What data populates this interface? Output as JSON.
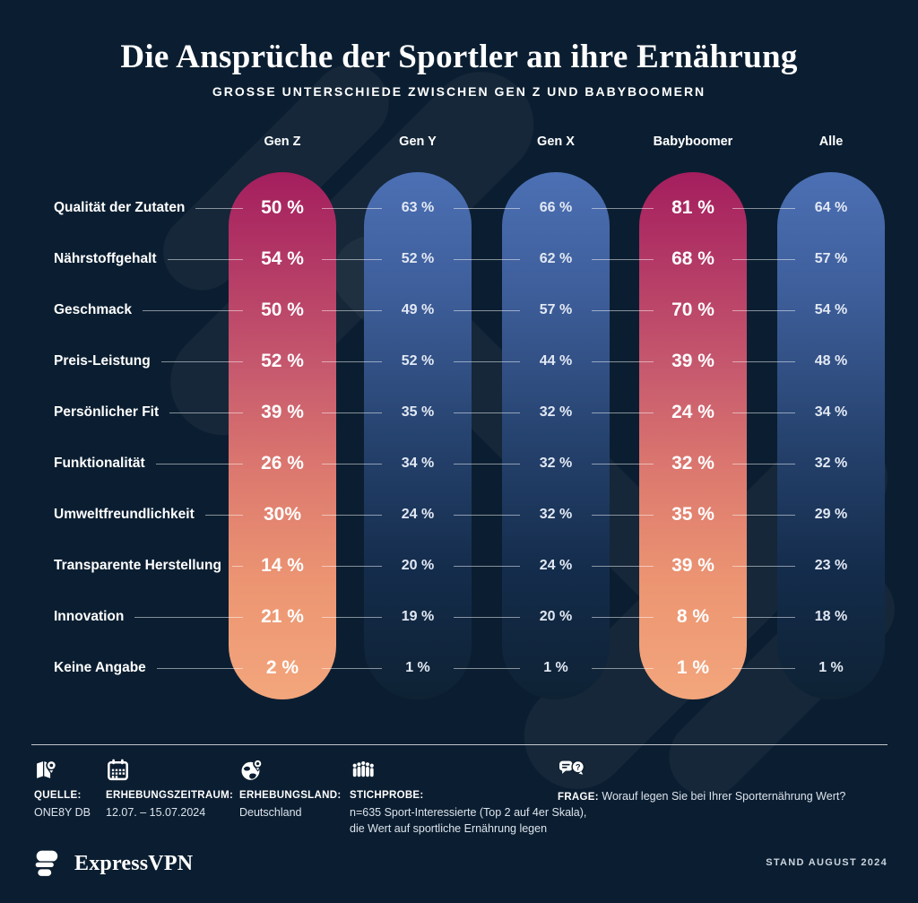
{
  "title": "Die Ansprüche der Sportler an ihre Ernährung",
  "subtitle": "GROSSE UNTERSCHIEDE ZWISCHEN GEN Z UND BABYBOOMERN",
  "columns": [
    {
      "label": "Gen Z",
      "type": "highlight"
    },
    {
      "label": "Gen Y",
      "type": "normal"
    },
    {
      "label": "Gen X",
      "type": "normal"
    },
    {
      "label": "Babyboomer",
      "type": "highlight"
    },
    {
      "label": "Alle",
      "type": "normal"
    }
  ],
  "rows": [
    {
      "label": "Qualität der Zutaten",
      "values": [
        "50 %",
        "63 %",
        "66 %",
        "81 %",
        "64 %"
      ]
    },
    {
      "label": "Nährstoffgehalt",
      "values": [
        "54 %",
        "52 %",
        "62 %",
        "68 %",
        "57 %"
      ]
    },
    {
      "label": "Geschmack",
      "values": [
        "50 %",
        "49 %",
        "57 %",
        "70 %",
        "54 %"
      ]
    },
    {
      "label": "Preis-Leistung",
      "values": [
        "52 %",
        "52 %",
        "44 %",
        "39 %",
        "48 %"
      ]
    },
    {
      "label": "Persönlicher Fit",
      "values": [
        "39 %",
        "35 %",
        "32 %",
        "24 %",
        "34 %"
      ]
    },
    {
      "label": "Funktionalität",
      "values": [
        "26 %",
        "34 %",
        "32 %",
        "32 %",
        "32 %"
      ]
    },
    {
      "label": "Umweltfreundlichkeit",
      "values": [
        "30%",
        "24 %",
        "32 %",
        "35 %",
        "29 %"
      ]
    },
    {
      "label": "Transparente Herstellung",
      "values": [
        "14 %",
        "20 %",
        "24 %",
        "39 %",
        "23 %"
      ]
    },
    {
      "label": "Innovation",
      "values": [
        "21 %",
        "19 %",
        "20 %",
        "8 %",
        "18 %"
      ]
    },
    {
      "label": "Keine Angabe",
      "values": [
        "2 %",
        "1 %",
        "1 %",
        "1 %",
        "1 %"
      ]
    }
  ],
  "chart_data": {
    "type": "table",
    "title": "Die Ansprüche der Sportler an ihre Ernährung",
    "subtitle": "Grosse Unterschiede zwischen Gen Z und Babyboomern",
    "unit": "%",
    "categories": [
      "Qualität der Zutaten",
      "Nährstoffgehalt",
      "Geschmack",
      "Preis-Leistung",
      "Persönlicher Fit",
      "Funktionalität",
      "Umweltfreundlichkeit",
      "Transparente Herstellung",
      "Innovation",
      "Keine Angabe"
    ],
    "series": [
      {
        "name": "Gen Z",
        "highlighted": true,
        "values": [
          50,
          54,
          50,
          52,
          39,
          26,
          30,
          14,
          21,
          2
        ]
      },
      {
        "name": "Gen Y",
        "highlighted": false,
        "values": [
          63,
          52,
          49,
          52,
          35,
          34,
          24,
          20,
          19,
          1
        ]
      },
      {
        "name": "Gen X",
        "highlighted": false,
        "values": [
          66,
          62,
          57,
          44,
          32,
          32,
          32,
          24,
          20,
          1
        ]
      },
      {
        "name": "Babyboomer",
        "highlighted": true,
        "values": [
          81,
          68,
          70,
          39,
          24,
          32,
          35,
          39,
          8,
          1
        ]
      },
      {
        "name": "Alle",
        "highlighted": false,
        "values": [
          64,
          57,
          54,
          48,
          34,
          32,
          29,
          23,
          18,
          1
        ]
      }
    ]
  },
  "meta": [
    {
      "icon": "map-pin-icon",
      "label": "QUELLE:",
      "lines": [
        "ONE8Y DB"
      ]
    },
    {
      "icon": "calendar-icon",
      "label": "ERHEBUNGSZEITRAUM:",
      "lines": [
        "12.07. – 15.07.2024"
      ]
    },
    {
      "icon": "globe-pin-icon",
      "label": "ERHEBUNGSLAND:",
      "lines": [
        "Deutschland"
      ]
    },
    {
      "icon": "people-icon",
      "label": "STICHPROBE:",
      "lines": [
        "n=635 Sport-Interessierte (Top 2 auf 4er Skala),",
        "die Wert auf sportliche Ernährung legen"
      ]
    },
    {
      "icon": "speech-question-icon",
      "label": "FRAGE:",
      "inline": "Worauf legen Sie bei Ihrer Sporternährung Wert?"
    }
  ],
  "footer": {
    "brand": "ExpressVPN",
    "stand": "STAND AUGUST 2024"
  },
  "colors": {
    "background": "#0B1E31",
    "highlight_gradient_top": "#A41E5E",
    "highlight_gradient_bottom": "#F3A67C",
    "normal_gradient_top": "#4C70B4",
    "normal_gradient_bottom": "#0E2234",
    "text": "#FFFFFF",
    "muted_text": "#DCE3EC"
  }
}
